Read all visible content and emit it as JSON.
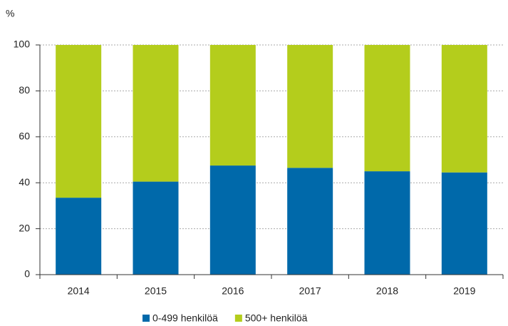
{
  "chart_data": {
    "type": "stacked_bar",
    "y_label": "%",
    "categories": [
      "2014",
      "2015",
      "2016",
      "2017",
      "2018",
      "2019"
    ],
    "series": [
      {
        "name": "0-499 henkilöä",
        "color": "#0069aa",
        "values": [
          33.5,
          40.5,
          47.5,
          46.5,
          45,
          44.5
        ]
      },
      {
        "name": "500+ henkilöä",
        "color": "#b4cd1c",
        "values": [
          66.5,
          59.5,
          52.5,
          53.5,
          55,
          55.5
        ]
      }
    ],
    "ylim": [
      0,
      100
    ],
    "yticks": [
      0,
      20,
      40,
      60,
      80,
      100
    ],
    "grid": true,
    "legend": "bottom"
  }
}
